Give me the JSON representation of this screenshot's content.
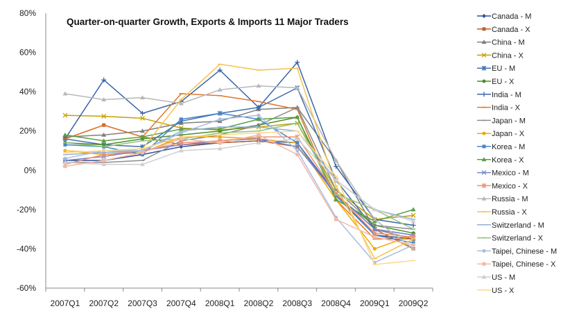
{
  "chart_data": {
    "type": "line",
    "title": "Quarter-on-quarter Growth, Exports & Imports 11 Major Traders",
    "xlabel": "",
    "ylabel": "",
    "ylim": [
      -60,
      80
    ],
    "yticks": [
      80,
      60,
      40,
      20,
      0,
      -20,
      -40,
      -60
    ],
    "ytick_labels": [
      "80%",
      "60%",
      "40%",
      "20%",
      "0%",
      "-20%",
      "-40%",
      "-60%"
    ],
    "grid": false,
    "legend_position": "right",
    "categories": [
      "2007Q1",
      "2007Q2",
      "2007Q3",
      "2007Q4",
      "2008Q1",
      "2008Q2",
      "2008Q3",
      "2008Q4",
      "2009Q1",
      "2009Q2"
    ],
    "series": [
      {
        "name": "Canada  - M",
        "color": "#2f4f9a",
        "marker": "diamond",
        "values": [
          5,
          5,
          8,
          12,
          14,
          15,
          14,
          -12,
          -33,
          -35
        ]
      },
      {
        "name": "Canada - X",
        "color": "#c0602a",
        "marker": "square",
        "values": [
          16,
          23,
          17,
          13,
          14,
          15,
          12,
          -12,
          -30,
          -40
        ]
      },
      {
        "name": "China - M",
        "color": "#7f7f7f",
        "marker": "triangle",
        "values": [
          17,
          18,
          20,
          24,
          25,
          31,
          32,
          5,
          -30,
          -35
        ]
      },
      {
        "name": "China - X",
        "color": "#c9a000",
        "marker": "x",
        "values": [
          28,
          27.5,
          26.5,
          21.5,
          20.5,
          22,
          24,
          -10,
          -25,
          -23
        ]
      },
      {
        "name": "EU - M",
        "color": "#3f6fb0",
        "marker": "star",
        "values": [
          16,
          13,
          12,
          25,
          29,
          32,
          42,
          -5,
          -30,
          -33
        ]
      },
      {
        "name": "EU - X",
        "color": "#4f8a2a",
        "marker": "circle",
        "values": [
          14,
          13,
          16,
          18,
          20,
          23,
          27,
          -13,
          -28,
          -32
        ]
      },
      {
        "name": "India - M",
        "color": "#3a64a8",
        "marker": "plus",
        "values": [
          16,
          46,
          29,
          35,
          51,
          32,
          55,
          2,
          -25,
          -28
        ]
      },
      {
        "name": "India - X",
        "color": "#e0762e",
        "marker": "dash",
        "values": [
          16,
          23,
          17,
          39,
          38,
          35,
          31,
          -15,
          -35,
          -35
        ]
      },
      {
        "name": "Japan - M",
        "color": "#8c8c8c",
        "marker": "dash",
        "values": [
          4,
          4,
          5,
          15,
          18,
          23,
          32,
          -10,
          -28,
          -30
        ]
      },
      {
        "name": "Japan - X",
        "color": "#f0a800",
        "marker": "circle",
        "values": [
          10,
          8,
          9,
          17,
          17,
          16,
          14,
          -15,
          -40,
          -33
        ]
      },
      {
        "name": "Korea - M",
        "color": "#4a86c5",
        "marker": "square",
        "values": [
          13,
          12,
          8,
          26,
          29,
          26,
          14,
          -13,
          -33,
          -37
        ]
      },
      {
        "name": "Korea - X",
        "color": "#5aa040",
        "marker": "triangle",
        "values": [
          18,
          15,
          17,
          21,
          21,
          26,
          27,
          -15,
          -26,
          -20
        ]
      },
      {
        "name": "Mexico  - M",
        "color": "#7a86c8",
        "marker": "x",
        "values": [
          5,
          7,
          10,
          13,
          15,
          16,
          12,
          -12,
          -30,
          -33
        ]
      },
      {
        "name": "Mexico - X",
        "color": "#f09070",
        "marker": "star",
        "values": [
          3,
          8,
          10,
          14,
          15,
          17,
          17,
          -12,
          -32,
          -34
        ]
      },
      {
        "name": "Russia - M",
        "color": "#b8b8b8",
        "marker": "triangle",
        "values": [
          39,
          36,
          37,
          34,
          41,
          43,
          42,
          5,
          -25,
          -40
        ]
      },
      {
        "name": "Russia - X",
        "color": "#f7c24a",
        "marker": "dash",
        "values": [
          10,
          9,
          11,
          36,
          54,
          51,
          52,
          -8,
          -45,
          -35
        ]
      },
      {
        "name": "Switzerland - M",
        "color": "#8fb0dc",
        "marker": "dash",
        "values": [
          8,
          9,
          10,
          20,
          22,
          22,
          20,
          -5,
          -20,
          -25
        ]
      },
      {
        "name": "Switzerland - X",
        "color": "#8fc27a",
        "marker": "dash",
        "values": [
          14,
          12,
          15,
          16,
          19,
          20,
          24,
          -12,
          -20,
          -30
        ]
      },
      {
        "name": "Taipei, Chinese - M",
        "color": "#a8bde0",
        "marker": "circle",
        "values": [
          6,
          10,
          10,
          19,
          26,
          28,
          10,
          -24,
          -47,
          -38
        ]
      },
      {
        "name": "Taipei, Chinese - X",
        "color": "#f5b8a6",
        "marker": "square",
        "values": [
          2,
          5,
          9,
          16,
          14,
          18,
          8,
          -25,
          -34,
          -38
        ]
      },
      {
        "name": "US - M",
        "color": "#cfcfcf",
        "marker": "triangle",
        "values": [
          4,
          3,
          3,
          10,
          11,
          14,
          16,
          -5,
          -20,
          -26
        ]
      },
      {
        "name": "US - X",
        "color": "#fbd98a",
        "marker": "dash",
        "values": [
          9,
          10,
          11,
          17,
          18,
          19,
          20,
          -3,
          -48,
          -46
        ]
      }
    ]
  }
}
